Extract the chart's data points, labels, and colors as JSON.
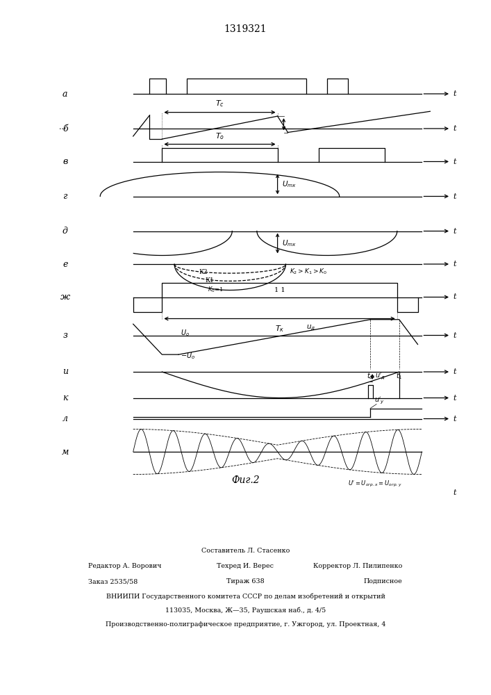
{
  "title": "1319321",
  "fig_label": "Фиг.2",
  "background_color": "#ffffff",
  "line_color": "#000000",
  "row_labels": [
    "а",
    "б",
    "в",
    "г",
    "д",
    "е",
    "ж",
    "з",
    "и",
    "к",
    "л",
    "м"
  ],
  "footer_lines": [
    [
      "center",
      "Составитель Л. Стасенко"
    ],
    [
      "left",
      "Редактор А. Ворович"
    ],
    [
      "center",
      "Техред И. Верес"
    ],
    [
      "right",
      "Корректор Л. Пилипенко"
    ],
    [
      "left",
      "Заказ 2535/58"
    ],
    [
      "center",
      "Тираж 638"
    ],
    [
      "right",
      "Подписное"
    ],
    [
      "center",
      "ВНИИПИ Государственного комитета СССР по делам изобретений и открытий"
    ],
    [
      "center",
      "113035, Москва, Ж‡35, Раушская наб., д. 4/5"
    ],
    [
      "center",
      "Производственно-полиграфическое предприятие, г. Ужгород, ул. Проектная, 4"
    ]
  ]
}
